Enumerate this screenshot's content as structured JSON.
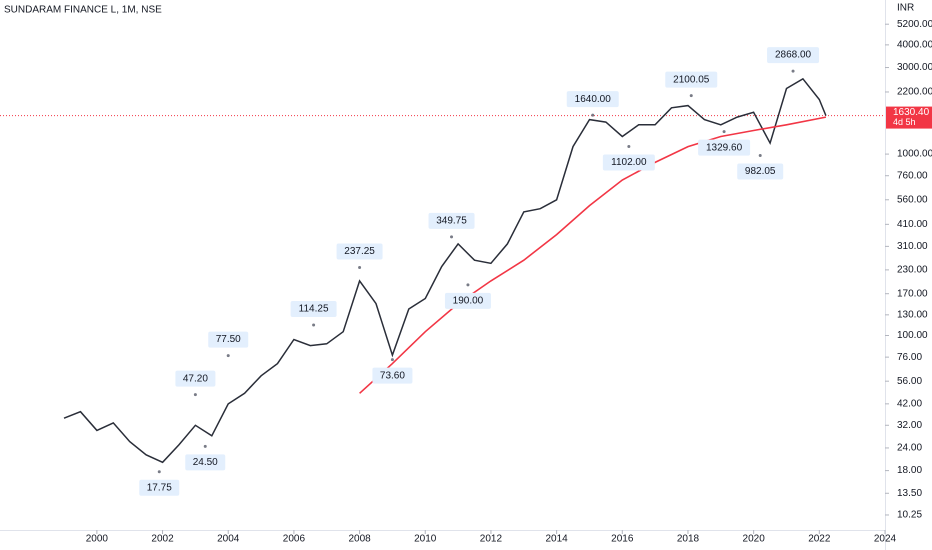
{
  "chart_data": {
    "type": "line",
    "title": "SUNDARAM FINANCE L, 1M, NSE",
    "y_unit": "INR",
    "log_scale": true,
    "xlim": [
      1997.05,
      2024
    ],
    "xticks": [
      2000,
      2002,
      2004,
      2006,
      2008,
      2010,
      2012,
      2014,
      2016,
      2018,
      2020,
      2022,
      2024
    ],
    "ylim": [
      8.47,
      7070
    ],
    "yticks": [
      {
        "value": 5200,
        "label": "5200.00"
      },
      {
        "value": 4000,
        "label": "4000.00"
      },
      {
        "value": 3000,
        "label": "3000.00"
      },
      {
        "value": 2200,
        "label": "2200.00"
      },
      {
        "value": 1000,
        "label": "1000.00"
      },
      {
        "value": 760,
        "label": "760.00"
      },
      {
        "value": 560,
        "label": "560.00"
      },
      {
        "value": 410,
        "label": "410.00"
      },
      {
        "value": 310,
        "label": "310.00"
      },
      {
        "value": 230,
        "label": "230.00"
      },
      {
        "value": 170,
        "label": "170.00"
      },
      {
        "value": 130,
        "label": "130.00"
      },
      {
        "value": 100,
        "label": "100.00"
      },
      {
        "value": 76,
        "label": "76.00"
      },
      {
        "value": 56,
        "label": "56.00"
      },
      {
        "value": 42,
        "label": "42.00"
      },
      {
        "value": 32,
        "label": "32.00"
      },
      {
        "value": 24,
        "label": "24.00"
      },
      {
        "value": 18,
        "label": "18.00"
      },
      {
        "value": 13.5,
        "label": "13.50"
      },
      {
        "value": 10.25,
        "label": "10.25"
      }
    ],
    "series": [
      {
        "color": "#2a2e39",
        "x": [
          1999.0,
          1999.5,
          2000.0,
          2000.5,
          2001.0,
          2001.5,
          2002.0,
          2002.5,
          2003.0,
          2003.5,
          2004.0,
          2004.5,
          2005.0,
          2005.5,
          2006.0,
          2006.5,
          2007.0,
          2007.5,
          2008.0,
          2008.5,
          2009.0,
          2009.5,
          2010.0,
          2010.5,
          2011.0,
          2011.5,
          2012.0,
          2012.5,
          2013.0,
          2013.5,
          2014.0,
          2014.5,
          2015.0,
          2015.5,
          2016.0,
          2016.5,
          2017.0,
          2017.5,
          2018.0,
          2018.5,
          2019.0,
          2019.5,
          2020.0,
          2020.5,
          2021.0,
          2021.5,
          2022.0,
          2022.2
        ],
        "values": [
          35,
          38,
          30,
          33,
          26,
          22,
          20,
          25,
          32,
          28,
          42,
          48,
          60,
          70,
          95,
          88,
          90,
          105,
          200,
          150,
          78,
          140,
          160,
          240,
          320,
          260,
          250,
          320,
          480,
          500,
          560,
          1100,
          1550,
          1500,
          1250,
          1450,
          1450,
          1800,
          1850,
          1550,
          1450,
          1600,
          1700,
          1150,
          2300,
          2600,
          2000,
          1630.4
        ]
      },
      {
        "color": "#f23645",
        "x": [
          2008.0,
          2009.0,
          2010.0,
          2011.0,
          2012.0,
          2013.0,
          2014.0,
          2015.0,
          2016.0,
          2017.0,
          2018.0,
          2019.0,
          2020.0,
          2021.0,
          2022.2
        ],
        "values": [
          48,
          70,
          105,
          150,
          200,
          260,
          360,
          520,
          720,
          900,
          1100,
          1250,
          1350,
          1450,
          1600
        ]
      }
    ],
    "annotations": [
      {
        "x": 2001.9,
        "value": 17.75,
        "label": "17.75"
      },
      {
        "x": 2003.0,
        "value": 47.2,
        "label": "47.20"
      },
      {
        "x": 2003.3,
        "value": 24.5,
        "label": "24.50"
      },
      {
        "x": 2004.0,
        "value": 77.5,
        "label": "77.50"
      },
      {
        "x": 2006.6,
        "value": 114.25,
        "label": "114.25"
      },
      {
        "x": 2008.0,
        "value": 237.25,
        "label": "237.25"
      },
      {
        "x": 2009.0,
        "value": 73.6,
        "label": "73.60"
      },
      {
        "x": 2010.8,
        "value": 349.75,
        "label": "349.75"
      },
      {
        "x": 2011.3,
        "value": 190,
        "label": "190.00"
      },
      {
        "x": 2015.1,
        "value": 1640,
        "label": "1640.00"
      },
      {
        "x": 2016.2,
        "value": 1102,
        "label": "1102.00"
      },
      {
        "x": 2018.1,
        "value": 2100.05,
        "label": "2100.05"
      },
      {
        "x": 2019.1,
        "value": 1329.6,
        "label": "1329.60"
      },
      {
        "x": 2020.2,
        "value": 982.05,
        "label": "982.05"
      },
      {
        "x": 2021.2,
        "value": 2868,
        "label": "2868.00"
      }
    ],
    "last_price": {
      "value": 1630.4,
      "label": "1630.40",
      "countdown": "4d 5h",
      "color": "#f23645"
    }
  }
}
